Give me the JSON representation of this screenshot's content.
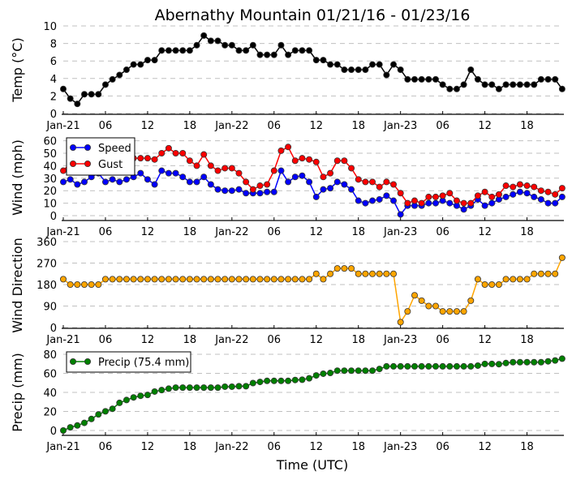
{
  "title": "Abernathy Mountain 01/21/16 - 01/23/16",
  "xlabel": "Time (UTC)",
  "x_tick_labels": [
    "Jan-21",
    "06",
    "12",
    "18",
    "Jan-22",
    "06",
    "12",
    "18",
    "Jan-23",
    "06",
    "12",
    "18"
  ],
  "x_tick_hours": [
    0,
    6,
    12,
    18,
    24,
    30,
    36,
    42,
    48,
    54,
    60,
    66
  ],
  "colors": {
    "temp": "#000000",
    "speed": "#0000ff",
    "gust": "#ff0000",
    "direction": "#ffa500",
    "precip": "#008000",
    "grid": "#c0c0c0"
  },
  "chart_data": [
    {
      "type": "line",
      "ylabel": "Temp (°C)",
      "ylim": [
        0,
        10
      ],
      "yticks": [
        0,
        2,
        4,
        6,
        8,
        10
      ],
      "grid": true,
      "series": [
        {
          "key": "temp",
          "values": [
            2.8,
            1.7,
            1.1,
            2.2,
            2.2,
            2.2,
            3.3,
            3.9,
            4.4,
            5.0,
            5.6,
            5.6,
            6.1,
            6.1,
            7.2,
            7.2,
            7.2,
            7.2,
            7.2,
            7.8,
            8.9,
            8.3,
            8.3,
            7.8,
            7.8,
            7.2,
            7.2,
            7.8,
            6.7,
            6.7,
            6.7,
            7.8,
            6.7,
            7.2,
            7.2,
            7.2,
            6.1,
            6.1,
            5.6,
            5.6,
            5.0,
            5.0,
            5.0,
            5.0,
            5.6,
            5.6,
            4.4,
            5.6,
            5.0,
            3.9,
            3.9,
            3.9,
            3.9,
            3.9,
            3.3,
            2.8,
            2.8,
            3.3,
            5.0,
            3.9,
            3.3,
            3.3,
            2.8,
            3.3,
            3.3,
            3.3,
            3.3,
            3.3,
            3.9,
            3.9,
            3.9,
            2.8
          ]
        }
      ]
    },
    {
      "type": "line",
      "ylabel": "Wind (mph)",
      "ylim": [
        0,
        60
      ],
      "yticks": [
        0,
        10,
        20,
        30,
        40,
        50,
        60
      ],
      "grid": true,
      "legend": "top-left",
      "series": [
        {
          "key": "speed",
          "name": "Speed",
          "values": [
            27,
            29,
            25,
            27,
            31,
            34,
            27,
            29,
            27,
            29,
            31,
            34,
            29,
            25,
            36,
            34,
            34,
            31,
            27,
            27,
            31,
            25,
            21,
            20,
            20,
            21,
            18,
            18,
            18,
            19,
            19,
            36,
            27,
            31,
            32,
            27,
            15,
            21,
            22,
            27,
            25,
            21,
            12,
            10,
            12,
            13,
            16,
            12,
            1,
            8,
            8,
            8,
            10,
            10,
            12,
            10,
            8,
            5,
            8,
            13,
            8,
            10,
            13,
            15,
            17,
            19,
            18,
            15,
            13,
            10,
            10,
            15
          ]
        },
        {
          "key": "gust",
          "name": "Gust",
          "values": [
            36,
            42,
            44,
            43,
            45,
            47,
            44,
            45,
            46,
            45,
            46,
            46,
            46,
            45,
            50,
            54,
            50,
            50,
            44,
            40,
            49,
            40,
            36,
            38,
            38,
            34,
            27,
            21,
            24,
            25,
            36,
            52,
            55,
            44,
            46,
            45,
            43,
            31,
            34,
            44,
            44,
            38,
            29,
            27,
            27,
            23,
            27,
            25,
            18,
            10,
            12,
            10,
            15,
            15,
            16,
            18,
            12,
            10,
            10,
            16,
            19,
            15,
            17,
            24,
            23,
            25,
            24,
            23,
            20,
            19,
            17,
            22
          ]
        }
      ]
    },
    {
      "type": "scatter",
      "ylabel": "Wind Direction",
      "ylim": [
        0,
        360
      ],
      "yticks": [
        0,
        90,
        180,
        270,
        360
      ],
      "grid": true,
      "series": [
        {
          "key": "direction",
          "values": [
            202.5,
            180,
            180,
            180,
            180,
            180,
            202.5,
            202.5,
            202.5,
            202.5,
            202.5,
            202.5,
            202.5,
            202.5,
            202.5,
            202.5,
            202.5,
            202.5,
            202.5,
            202.5,
            202.5,
            202.5,
            202.5,
            202.5,
            202.5,
            202.5,
            202.5,
            202.5,
            202.5,
            202.5,
            202.5,
            202.5,
            202.5,
            202.5,
            202.5,
            202.5,
            225,
            202.5,
            225,
            247.5,
            247.5,
            247.5,
            225,
            225,
            225,
            225,
            225,
            225,
            22.5,
            67.5,
            135,
            112.5,
            90,
            90,
            67.5,
            67.5,
            67.5,
            67.5,
            112.5,
            202.5,
            180,
            180,
            180,
            202.5,
            202.5,
            202.5,
            202.5,
            225,
            225,
            225,
            225,
            292.5
          ]
        }
      ]
    },
    {
      "type": "line",
      "ylabel": "Precip (mm)",
      "ylim": [
        0,
        80
      ],
      "yticks": [
        0,
        20,
        40,
        60,
        80
      ],
      "grid": true,
      "legend": "top-left",
      "series": [
        {
          "key": "precip",
          "name": "Precip (75.4 mm)",
          "values": [
            0,
            3.3,
            5.3,
            8.0,
            12.1,
            16.9,
            20.1,
            22.8,
            29.0,
            32.0,
            34.7,
            36.4,
            37.3,
            40.9,
            42.4,
            43.9,
            45.0,
            45.0,
            45.0,
            45.0,
            45.0,
            45.0,
            45.0,
            46.0,
            46.0,
            46.5,
            46.5,
            49.8,
            51.0,
            52.1,
            52.1,
            52.1,
            52.1,
            53.0,
            53.3,
            54.8,
            57.8,
            59.6,
            60.4,
            62.8,
            62.8,
            62.8,
            62.8,
            62.8,
            62.8,
            64.6,
            67.3,
            67.3,
            67.3,
            67.3,
            67.3,
            67.3,
            67.3,
            67.3,
            67.3,
            67.3,
            67.3,
            67.3,
            67.3,
            68.1,
            69.9,
            69.9,
            69.6,
            70.8,
            71.7,
            71.7,
            71.7,
            71.7,
            71.7,
            72.6,
            73.5,
            75.4
          ]
        }
      ]
    }
  ]
}
